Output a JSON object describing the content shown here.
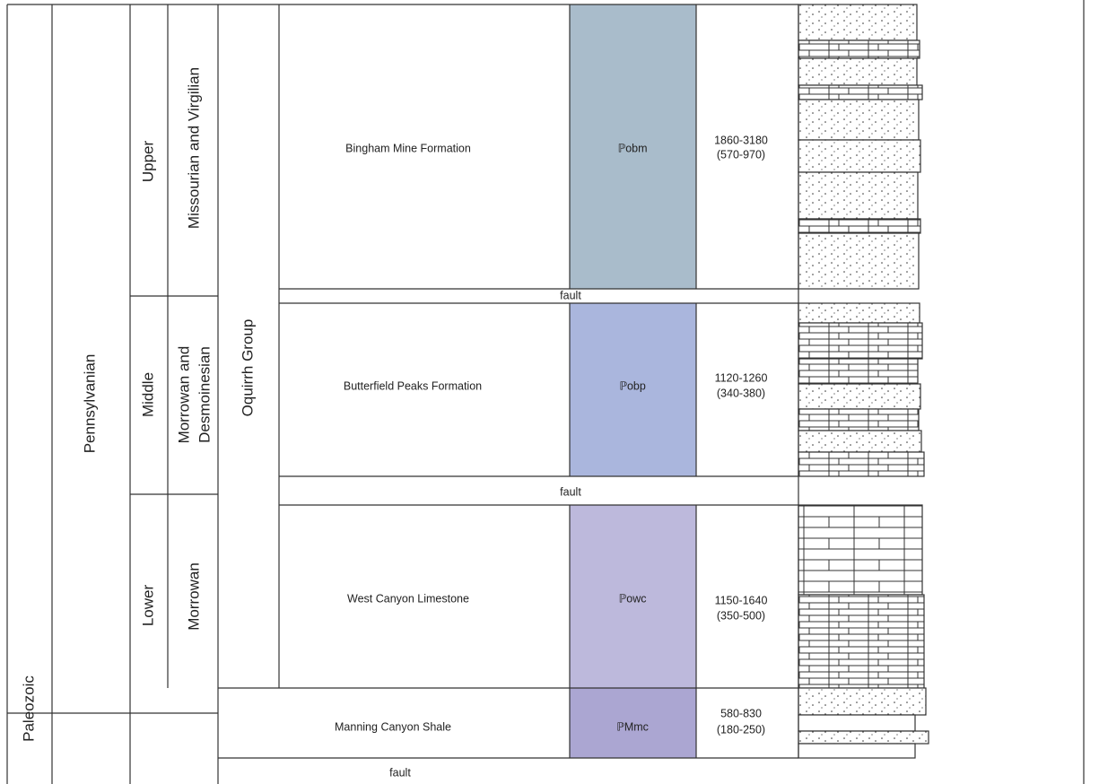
{
  "era": "Paleozoic",
  "period": "Pennsylvanian",
  "group": "Oquirrh Group",
  "epochs": [
    {
      "name": "Upper",
      "stage": [
        "Missourian and Virgilian"
      ]
    },
    {
      "name": "Middle",
      "stage": [
        "Morrowan and",
        "Desmoinesian"
      ]
    },
    {
      "name": "Lower",
      "stage": [
        "Morrowan"
      ]
    }
  ],
  "formations": [
    {
      "name": "Bingham Mine Formation",
      "unit": "ℙobm",
      "thickness": [
        "1860-3180",
        "(570-970)"
      ]
    },
    {
      "name": "Butterfield Peaks Formation",
      "unit": "ℙobp",
      "thickness": [
        "1120-1260",
        "(340-380)"
      ]
    },
    {
      "name": "West Canyon Limestone",
      "unit": "ℙowc",
      "thickness": [
        "1150-1640",
        "(350-500)"
      ]
    },
    {
      "name": "Manning Canyon Shale",
      "unit": "ℙMmc",
      "thickness": [
        "580-830",
        "(180-250)"
      ]
    }
  ],
  "faults": [
    "fault",
    "fault",
    "fault"
  ]
}
